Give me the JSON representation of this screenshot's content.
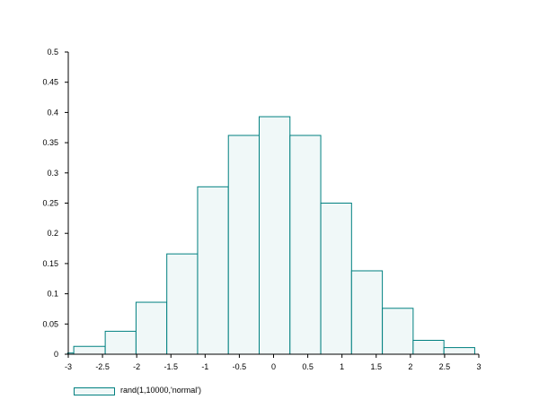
{
  "chart_data": {
    "type": "bar",
    "title": "",
    "xlabel": "",
    "ylabel": "",
    "xlim": [
      -3,
      3
    ],
    "ylim": [
      0,
      0.5
    ],
    "x_ticks": [
      "-3",
      "-2.5",
      "-2",
      "-1.5",
      "-1",
      "-0.5",
      "0",
      "0.5",
      "1",
      "1.5",
      "2",
      "2.5",
      "3"
    ],
    "x_tick_values": [
      -3,
      -2.5,
      -2,
      -1.5,
      -1,
      -0.5,
      0,
      0.5,
      1,
      1.5,
      2,
      2.5,
      3
    ],
    "y_ticks": [
      "0",
      "0.05",
      "0.1",
      "0.15",
      "0.2",
      "0.25",
      "0.3",
      "0.35",
      "0.4",
      "0.45",
      "0.5"
    ],
    "y_tick_values": [
      0,
      0.05,
      0.1,
      0.15,
      0.2,
      0.25,
      0.3,
      0.35,
      0.4,
      0.45,
      0.5
    ],
    "grid": false,
    "legend_position": "bottom-left",
    "series": [
      {
        "name": "rand(1,10000,'normal')",
        "color": "#008080",
        "fill": "#f0f8f8",
        "bin_edges": [
          -3.01,
          -2.92,
          -2.46,
          -2.01,
          -1.56,
          -1.11,
          -0.66,
          -0.21,
          0.24,
          0.69,
          1.14,
          1.59,
          2.04,
          2.49,
          2.94
        ],
        "values": [
          0.002,
          0.013,
          0.038,
          0.086,
          0.166,
          0.277,
          0.362,
          0.393,
          0.362,
          0.25,
          0.138,
          0.076,
          0.023,
          0.011
        ]
      }
    ]
  }
}
